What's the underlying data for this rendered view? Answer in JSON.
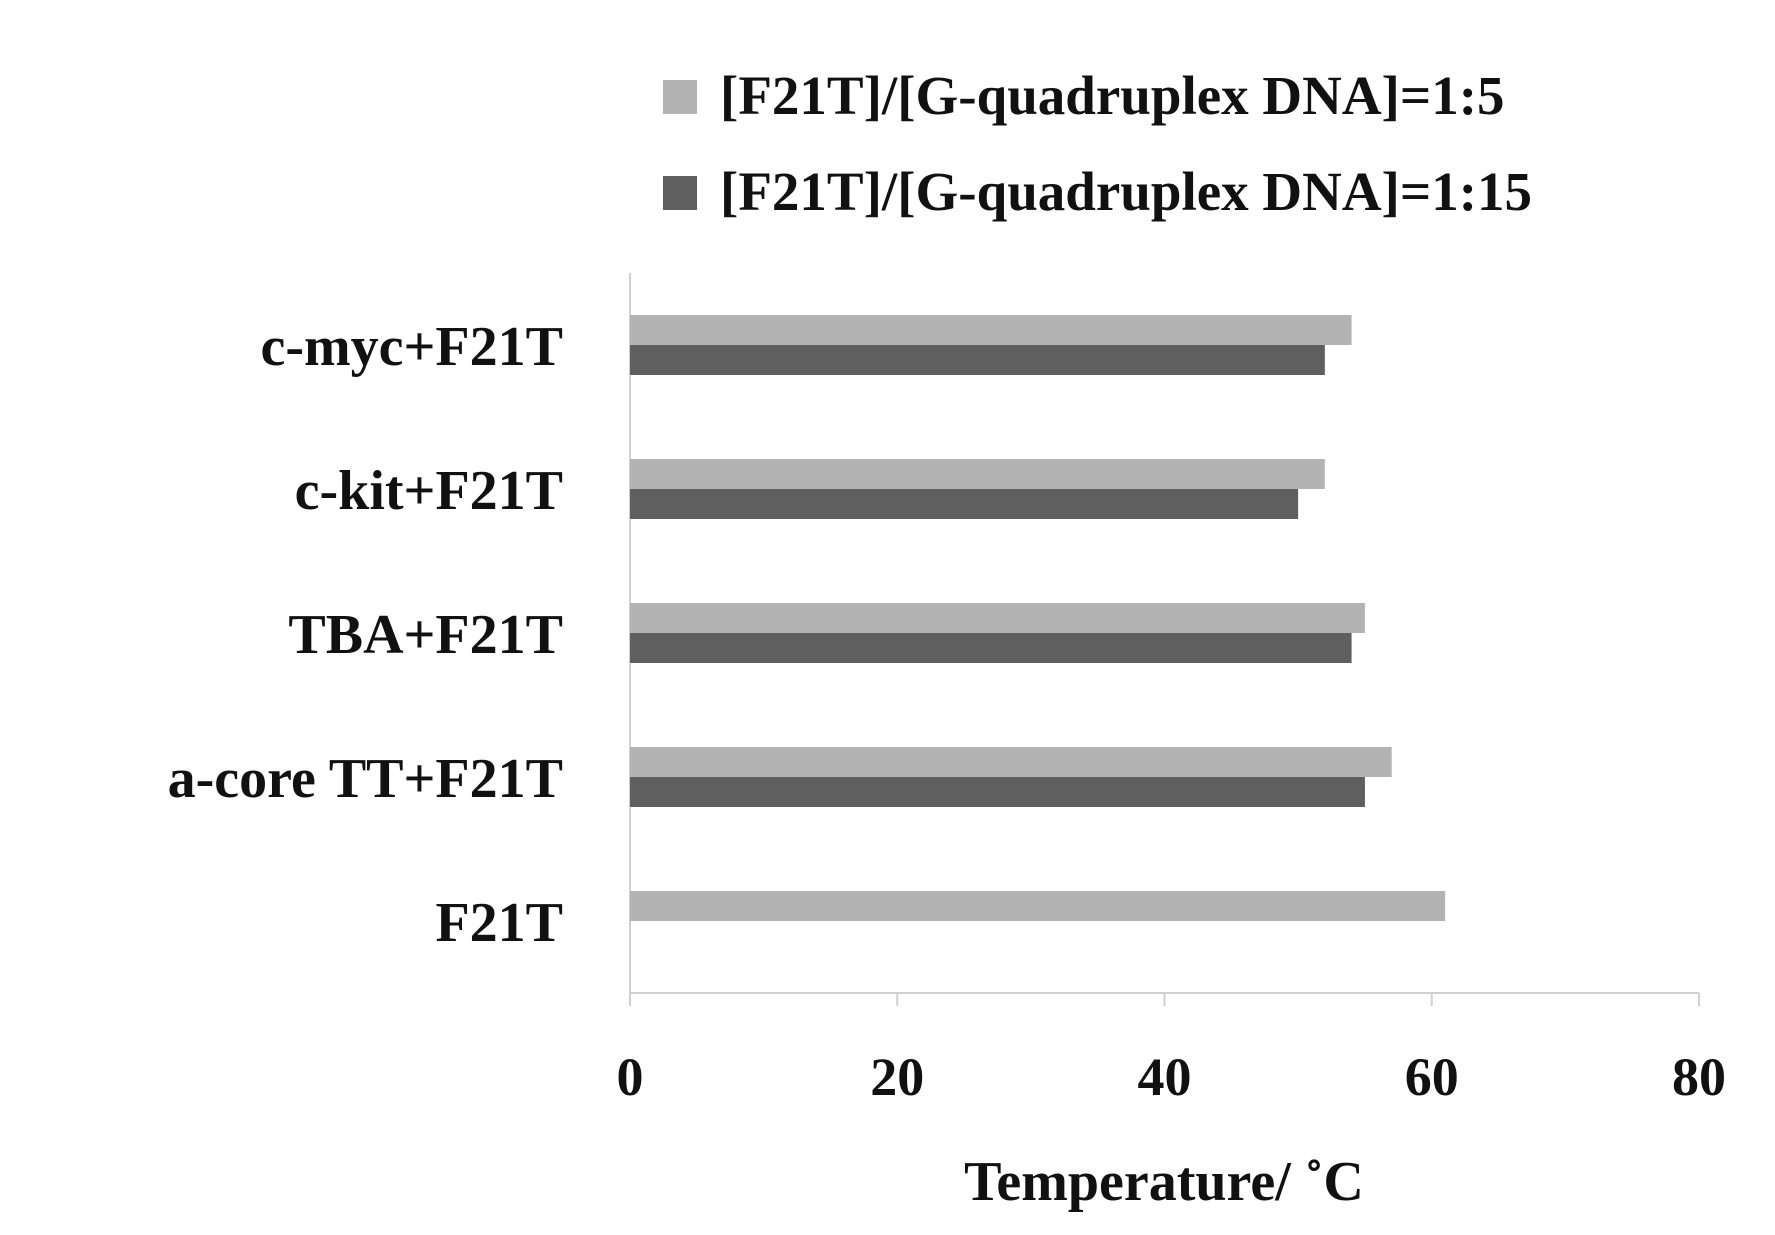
{
  "chart_data": {
    "type": "barh",
    "xlabel": "Temperature/ ˚C",
    "categories": [
      "c-myc+F21T",
      "c-kit+F21T",
      "TBA+F21T",
      "a-core TT+F21T",
      "F21T"
    ],
    "series": [
      {
        "name": "[F21T]/[G-quadruplex DNA]=1:5",
        "color": "#b3b3b3",
        "values": [
          54,
          52,
          55,
          57,
          61
        ]
      },
      {
        "name": "[F21T]/[G-quadruplex DNA]=1:15",
        "color": "#5f5f5f",
        "values": [
          52,
          50,
          54,
          55,
          null
        ]
      }
    ],
    "xlim": [
      0,
      80
    ],
    "xticks": [
      0,
      20,
      40,
      60,
      80
    ],
    "grid": false
  }
}
